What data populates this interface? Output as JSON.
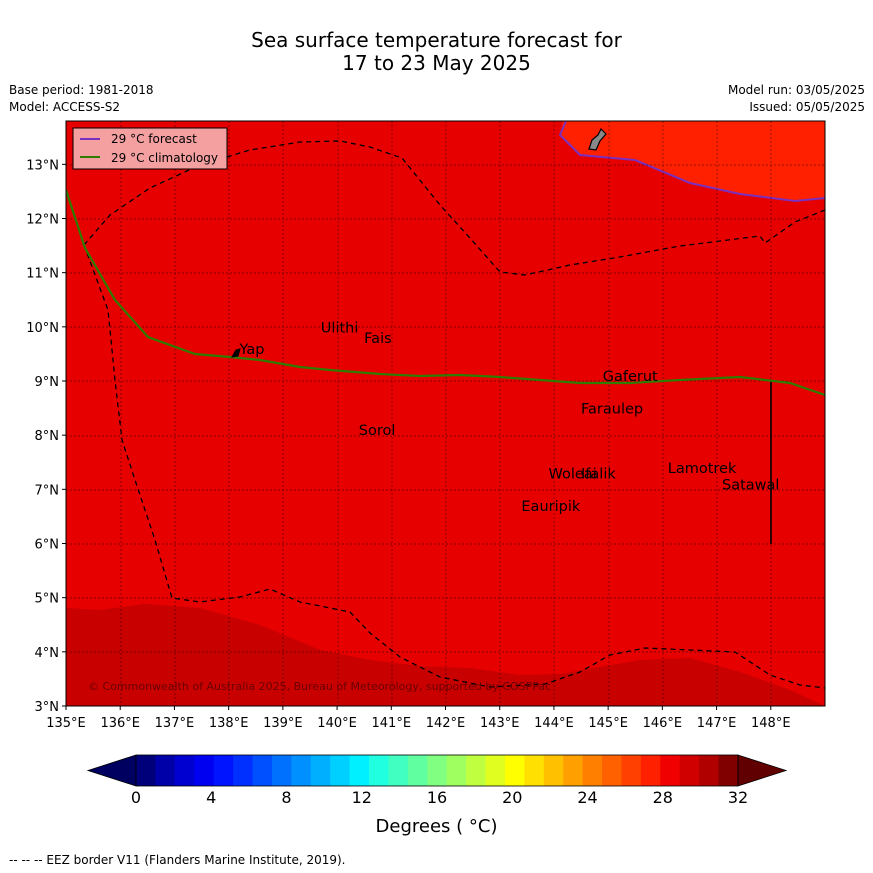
{
  "title_line1": "Sea surface temperature forecast for",
  "title_line2": "17 to 23 May 2025",
  "meta": {
    "base_period": "Base period: 1981-2018",
    "model": "Model: ACCESS-S2",
    "model_run": "Model run: 03/05/2025",
    "issued": "Issued: 05/05/2025"
  },
  "legend": {
    "forecast": "29 °C  forecast",
    "climatology": "29 °C  climatology",
    "forecast_color": "#7b2fbe",
    "climatology_color": "#2e7d00"
  },
  "lon_ticks": [
    "135°E",
    "136°E",
    "137°E",
    "138°E",
    "139°E",
    "140°E",
    "141°E",
    "142°E",
    "143°E",
    "144°E",
    "145°E",
    "146°E",
    "147°E",
    "148°E"
  ],
  "lat_ticks": [
    "3°N",
    "4°N",
    "5°N",
    "6°N",
    "7°N",
    "8°N",
    "9°N",
    "10°N",
    "11°N",
    "12°N",
    "13°N"
  ],
  "places": [
    {
      "name": "Ulithi",
      "lon": 139.7,
      "lat": 9.9
    },
    {
      "name": "Fais",
      "lon": 140.5,
      "lat": 9.7
    },
    {
      "name": "Yap",
      "lon": 138.2,
      "lat": 9.5
    },
    {
      "name": "Gaferut",
      "lon": 144.9,
      "lat": 9.0
    },
    {
      "name": "Faraulep",
      "lon": 144.5,
      "lat": 8.4
    },
    {
      "name": "Sorol",
      "lon": 140.4,
      "lat": 8.0
    },
    {
      "name": "Woleai",
      "lon": 143.9,
      "lat": 7.2
    },
    {
      "name": "Ifalik",
      "lon": 144.5,
      "lat": 7.2
    },
    {
      "name": "Lamotrek",
      "lon": 146.1,
      "lat": 7.3
    },
    {
      "name": "Satawal",
      "lon": 147.1,
      "lat": 7.0
    },
    {
      "name": "Eauripik",
      "lon": 143.4,
      "lat": 6.6
    }
  ],
  "copyright": "© Commonwealth of Australia 2025, Bureau of Meteorology, supported by COSPPac",
  "colorbar": {
    "labels": [
      "0",
      "4",
      "8",
      "12",
      "16",
      "20",
      "24",
      "28",
      "32"
    ],
    "title": "Degrees ( °C)",
    "colors": [
      "#00007a",
      "#0000a8",
      "#0000d0",
      "#0000f0",
      "#0014ff",
      "#0030ff",
      "#0050ff",
      "#0070ff",
      "#0090ff",
      "#00b0ff",
      "#00d0ff",
      "#00f0ff",
      "#20ffe0",
      "#40ffc0",
      "#60ffa0",
      "#80ff80",
      "#a0ff60",
      "#c0ff40",
      "#e0ff20",
      "#ffff00",
      "#ffe000",
      "#ffc000",
      "#ffa000",
      "#ff8000",
      "#ff6000",
      "#ff4000",
      "#ff2000",
      "#f00000",
      "#d00000",
      "#b00000",
      "#800000"
    ],
    "under_color": "#000060",
    "over_color": "#600000"
  },
  "footnote": "--  --  -- EEZ border V11 (Flanders Marine Institute, 2019)."
}
